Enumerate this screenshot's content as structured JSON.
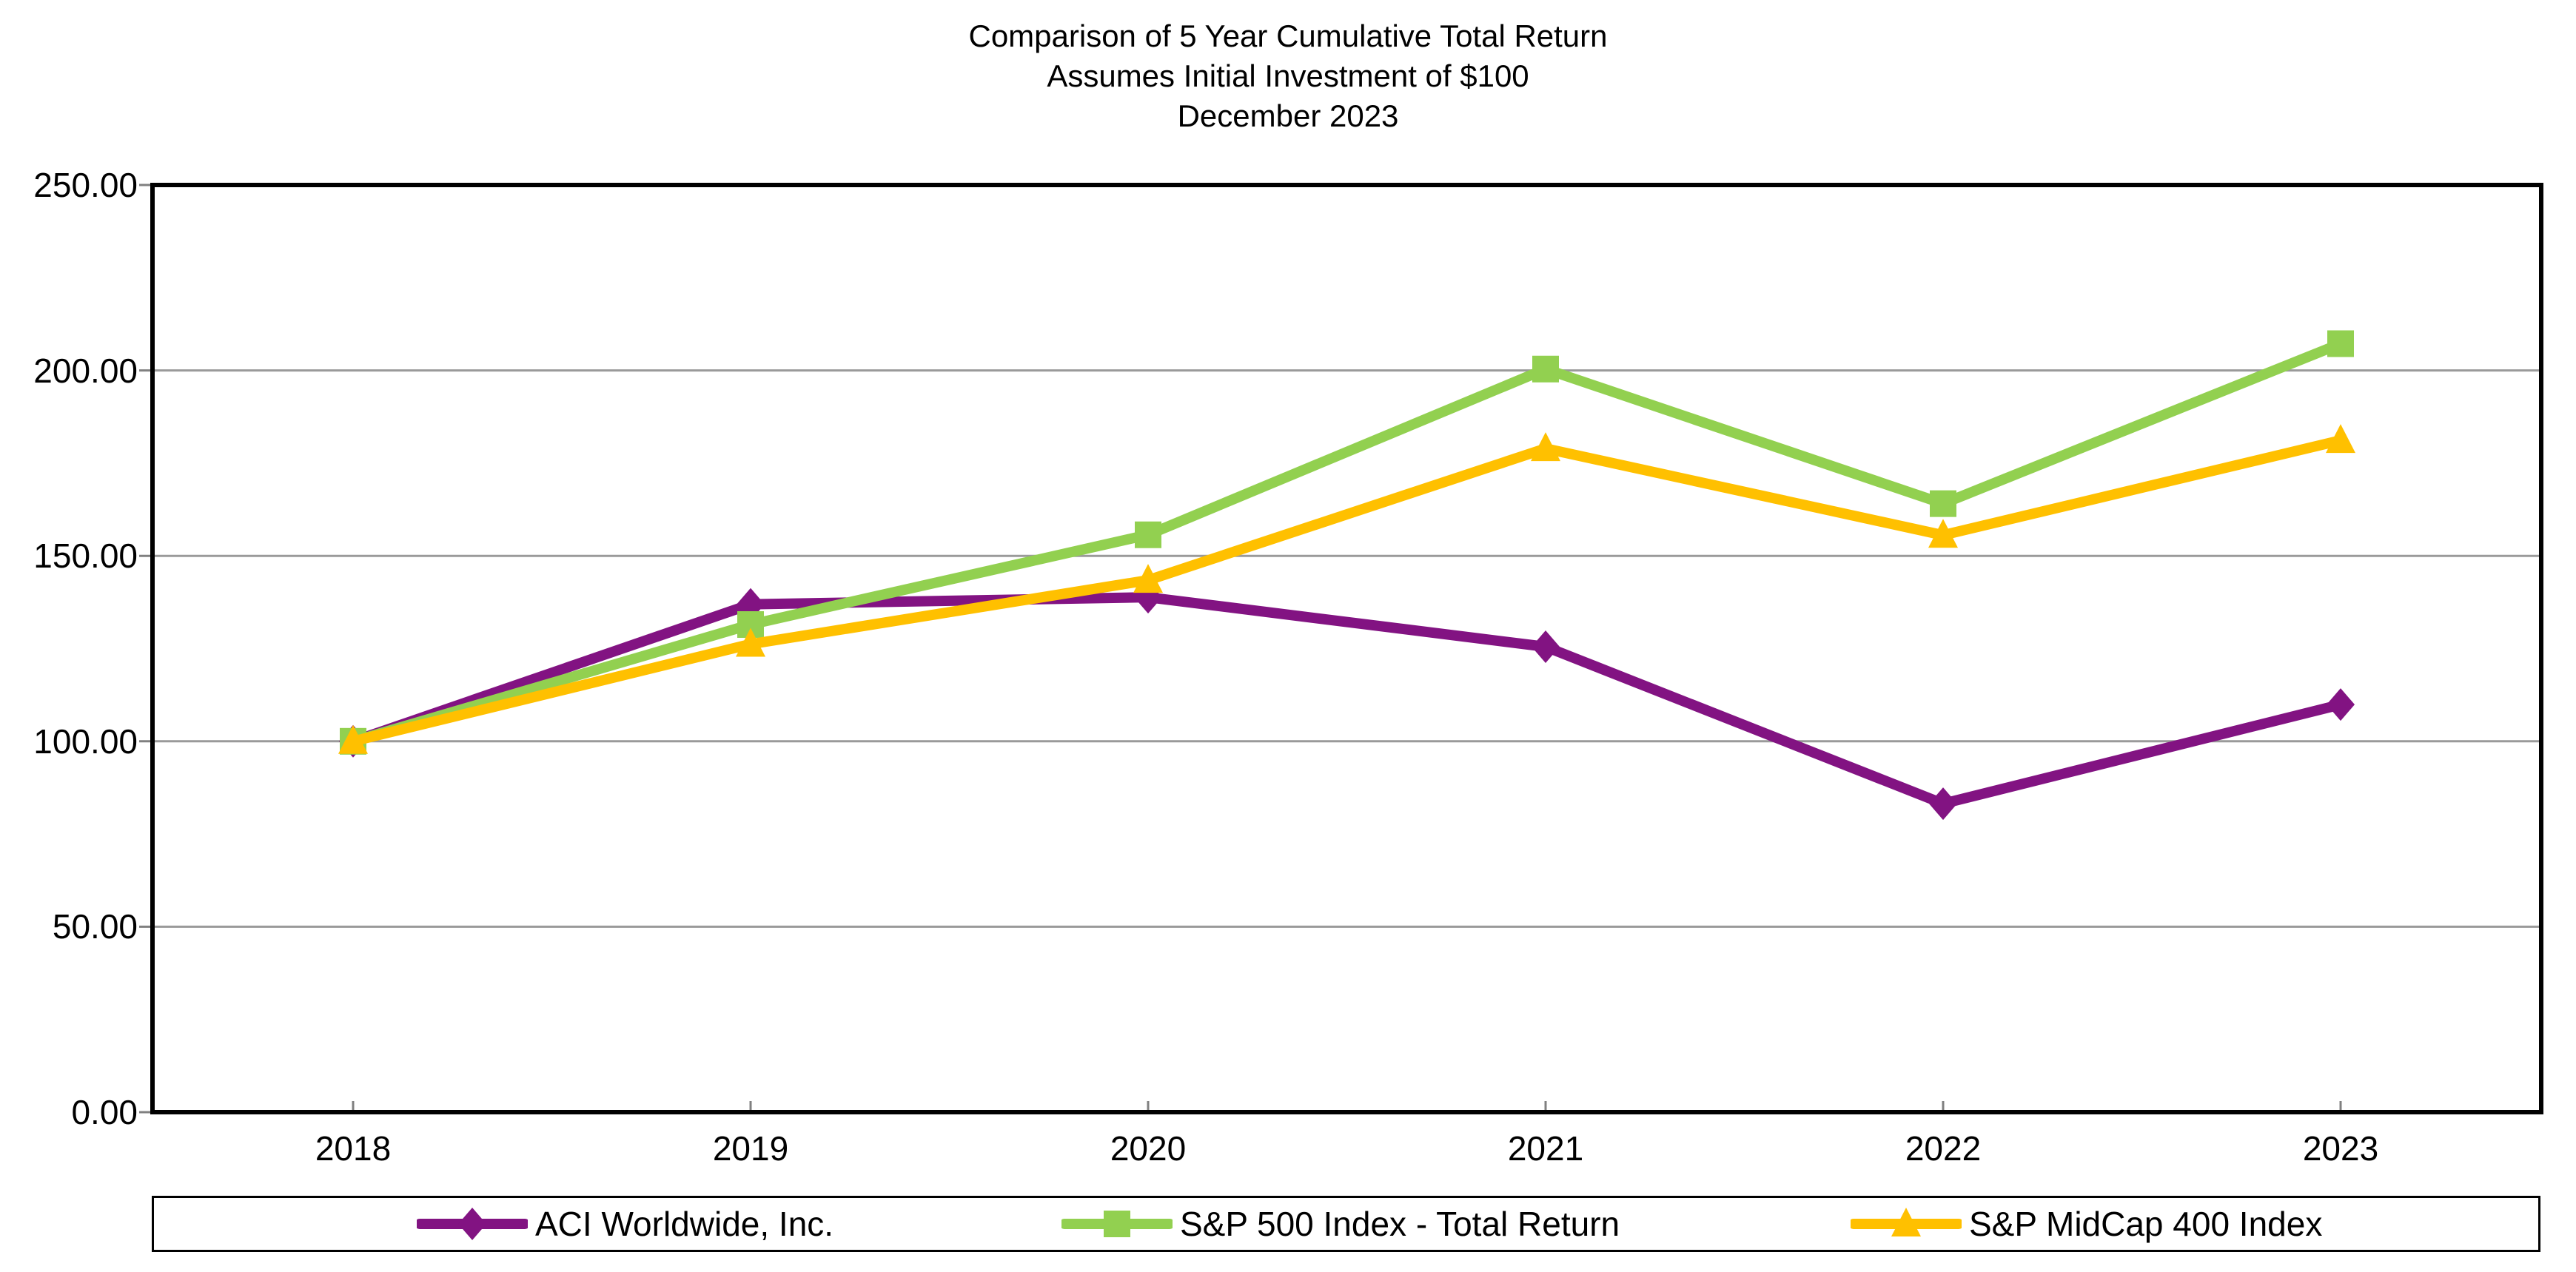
{
  "title": {
    "line1": "Comparison of 5 Year Cumulative Total Return",
    "line2": "Assumes Initial Investment of $100",
    "line3": "December 2023"
  },
  "chart_data": {
    "type": "line",
    "categories": [
      "2018",
      "2019",
      "2020",
      "2021",
      "2022",
      "2023"
    ],
    "series": [
      {
        "name": "ACI Worldwide, Inc.",
        "color": "#821382",
        "marker": "diamond",
        "values": [
          100.0,
          136.93,
          138.84,
          125.5,
          83.18,
          109.91
        ]
      },
      {
        "name": "S&P 500 Index - Total Return",
        "color": "#92D050",
        "marker": "square",
        "values": [
          100.0,
          131.49,
          155.68,
          200.37,
          164.08,
          207.21
        ]
      },
      {
        "name": "S&P MidCap 400 Index",
        "color": "#FFC000",
        "marker": "triangle",
        "values": [
          100.0,
          126.2,
          143.44,
          178.95,
          155.58,
          181.15
        ]
      }
    ],
    "ylim": [
      0,
      250
    ],
    "yticks": [
      {
        "value": 0,
        "label": "0.00"
      },
      {
        "value": 50,
        "label": "50.00"
      },
      {
        "value": 100,
        "label": "100.00"
      },
      {
        "value": 150,
        "label": "150.00"
      },
      {
        "value": 200,
        "label": "200.00"
      },
      {
        "value": 250,
        "label": "250.00"
      }
    ],
    "grid": true,
    "legend_position": "bottom",
    "colors": {
      "gridline": "#9A9A9A",
      "axis_border": "#000000",
      "tick": "#808080",
      "text": "#000000",
      "background": "#FFFFFF"
    }
  }
}
